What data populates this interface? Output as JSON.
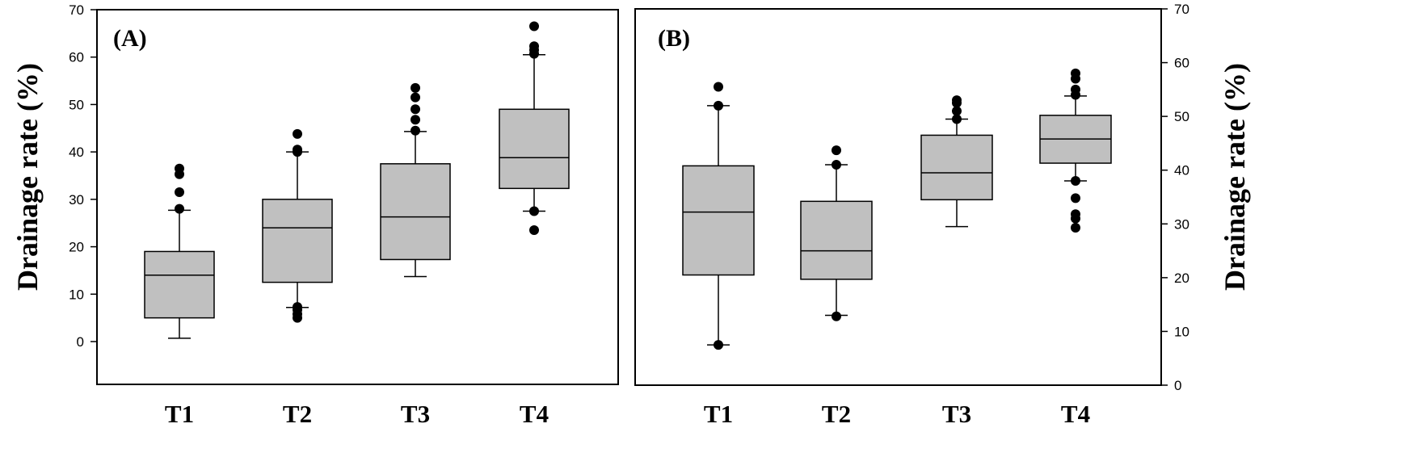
{
  "chart_data": [
    {
      "type": "box",
      "panel_label": "(A)",
      "categories": [
        "T1",
        "T2",
        "T3",
        "T4"
      ],
      "ylabel": "Drainage rate (%)",
      "ylim": [
        -9,
        70
      ],
      "yticks": [
        0,
        10,
        20,
        30,
        40,
        50,
        60,
        70
      ],
      "y_axis_side": "left",
      "box_color": "#c0c0c0",
      "boxes": [
        {
          "category": "T1",
          "whisker_low": 0.7,
          "q1": 5.0,
          "median": 14.0,
          "q3": 19.0,
          "whisker_high": 27.7,
          "outliers": [
            28.0,
            31.5,
            35.3,
            36.5
          ]
        },
        {
          "category": "T2",
          "whisker_low": 7.2,
          "q1": 12.5,
          "median": 24.0,
          "q3": 30.0,
          "whisker_high": 40.0,
          "outliers": [
            5.0,
            5.8,
            6.7,
            7.3,
            40.0,
            40.5,
            43.8
          ]
        },
        {
          "category": "T3",
          "whisker_low": 13.7,
          "q1": 17.3,
          "median": 26.3,
          "q3": 37.5,
          "whisker_high": 44.3,
          "outliers": [
            44.5,
            46.8,
            49.0,
            51.5,
            53.5
          ]
        },
        {
          "category": "T4",
          "whisker_low": 27.5,
          "q1": 32.3,
          "median": 38.8,
          "q3": 49.0,
          "whisker_high": 60.5,
          "outliers": [
            23.5,
            27.5,
            60.7,
            61.5,
            62.3,
            66.5
          ]
        }
      ]
    },
    {
      "type": "box",
      "panel_label": "(B)",
      "categories": [
        "T1",
        "T2",
        "T3",
        "T4"
      ],
      "ylabel": "Drainage rate (%)",
      "ylim": [
        0,
        70
      ],
      "yticks": [
        0,
        10,
        20,
        30,
        40,
        50,
        60,
        70
      ],
      "y_axis_side": "right",
      "box_color": "#c0c0c0",
      "boxes": [
        {
          "category": "T1",
          "whisker_low": 7.5,
          "q1": 20.5,
          "median": 32.2,
          "q3": 40.8,
          "whisker_high": 52.0,
          "outliers": [
            7.5,
            52.0,
            55.5
          ]
        },
        {
          "category": "T2",
          "whisker_low": 13.0,
          "q1": 19.7,
          "median": 25.0,
          "q3": 34.2,
          "whisker_high": 41.0,
          "outliers": [
            12.8,
            41.0,
            43.7
          ]
        },
        {
          "category": "T3",
          "whisker_low": 29.5,
          "q1": 34.5,
          "median": 39.5,
          "q3": 46.5,
          "whisker_high": 49.5,
          "outliers": [
            49.5,
            51.0,
            52.5,
            53.0
          ]
        },
        {
          "category": "T4",
          "whisker_low": 38.0,
          "q1": 41.3,
          "median": 45.8,
          "q3": 50.2,
          "whisker_high": 53.8,
          "outliers": [
            29.3,
            31.0,
            31.8,
            34.8,
            38.0,
            54.0,
            55.0,
            57.0,
            58.0
          ]
        }
      ]
    }
  ]
}
